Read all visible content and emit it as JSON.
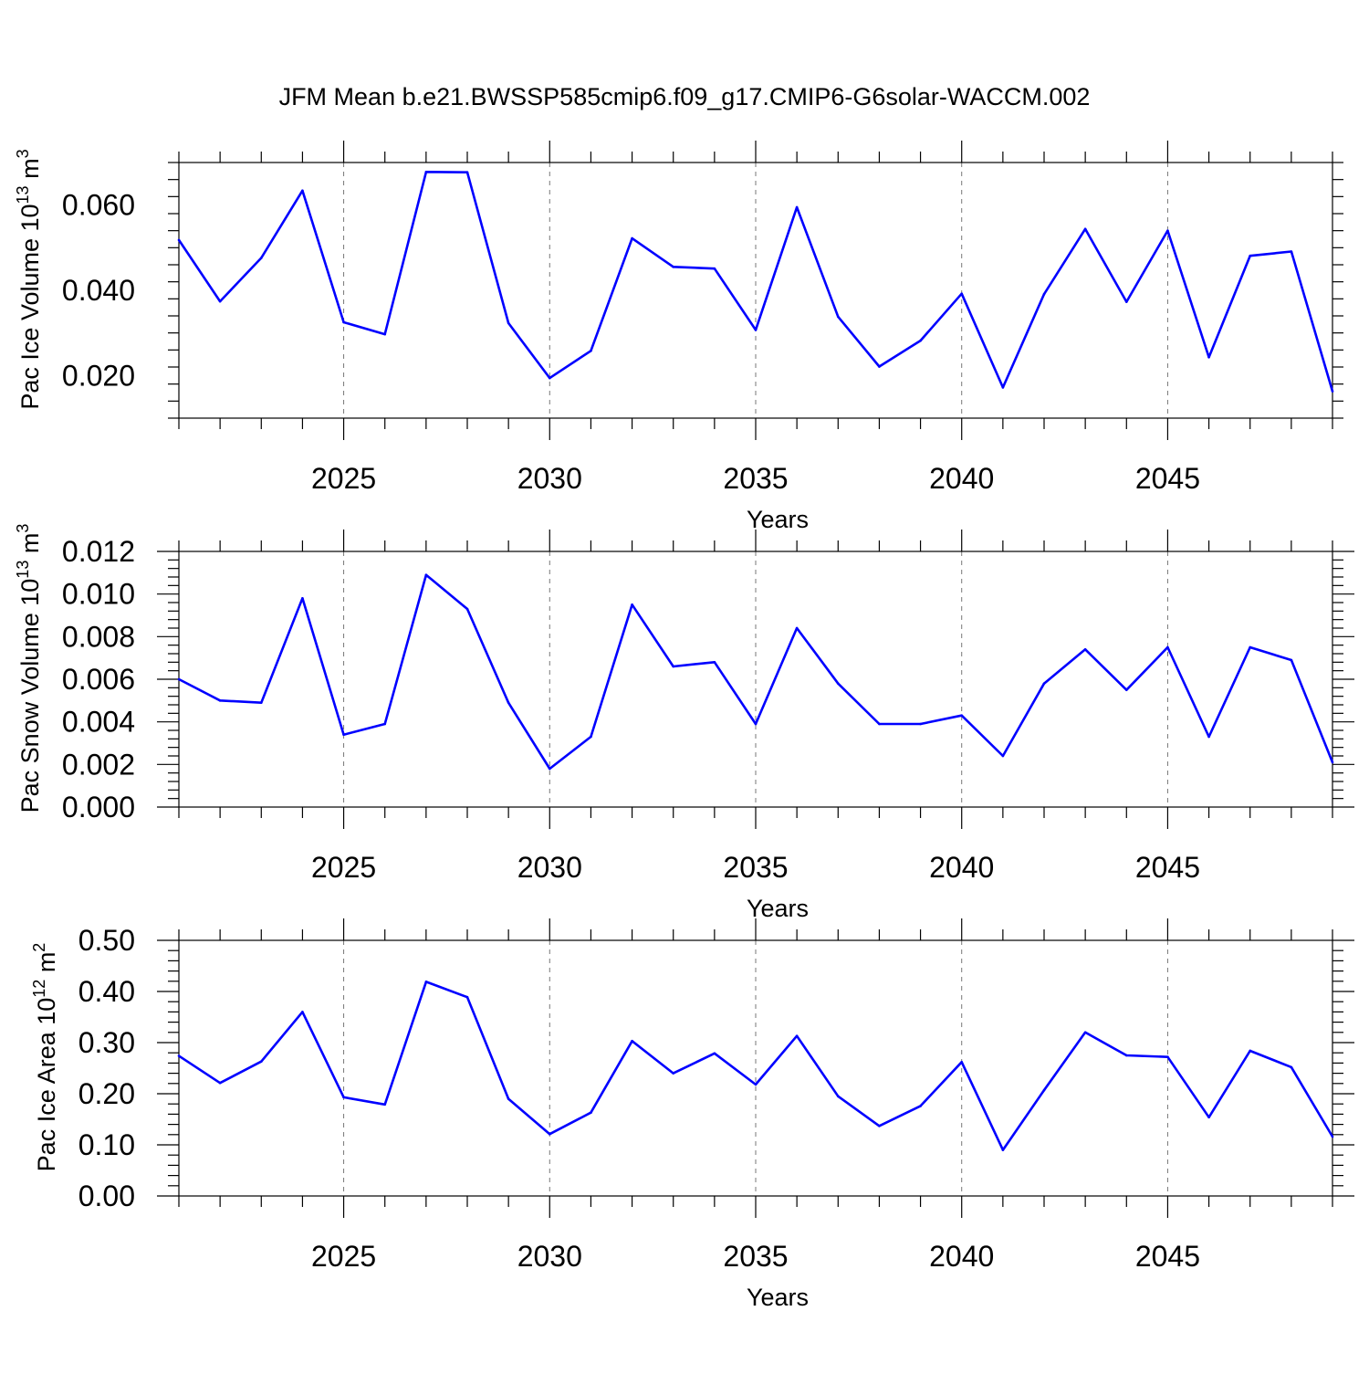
{
  "title": "JFM Mean b.e21.BWSSP585cmip6.f09_g17.CMIP6-G6solar-WACCM.002",
  "line_color": "#0000ff",
  "chart_data": [
    {
      "type": "line",
      "ylabel": "Pac Ice Volume 10",
      "ylabel_exp": "13",
      "ylabel_unit": " m",
      "ylabel_unit_exp": "3",
      "xlabel": "Years",
      "xlim": [
        2021,
        2049
      ],
      "ylim": [
        0.01,
        0.07
      ],
      "yticks": [
        "0.020",
        "0.040",
        "0.060"
      ],
      "ytick_values": [
        0.02,
        0.04,
        0.06
      ],
      "xticks": [
        "2025",
        "2030",
        "2035",
        "2040",
        "2045"
      ],
      "grid": "dashed vertical at major x ticks",
      "x": [
        2021,
        2022,
        2023,
        2024,
        2025,
        2026,
        2027,
        2028,
        2029,
        2030,
        2031,
        2032,
        2033,
        2034,
        2035,
        2036,
        2037,
        2038,
        2039,
        2040,
        2041,
        2042,
        2043,
        2044,
        2045,
        2046,
        2047,
        2048,
        2049
      ],
      "values": [
        0.0518,
        0.0374,
        0.0476,
        0.0634,
        0.0325,
        0.0297,
        0.0678,
        0.0677,
        0.0323,
        0.0194,
        0.0258,
        0.0522,
        0.0455,
        0.0451,
        0.0307,
        0.0595,
        0.0338,
        0.0221,
        0.0282,
        0.0392,
        0.0172,
        0.0391,
        0.0544,
        0.0373,
        0.054,
        0.0243,
        0.0481,
        0.0491,
        0.0163
      ]
    },
    {
      "type": "line",
      "ylabel": "Pac Snow Volume 10",
      "ylabel_exp": "13",
      "ylabel_unit": " m",
      "ylabel_unit_exp": "3",
      "xlabel": "Years",
      "xlim": [
        2021,
        2049
      ],
      "ylim": [
        0.0,
        0.012
      ],
      "yticks": [
        "0.000",
        "0.002",
        "0.004",
        "0.006",
        "0.008",
        "0.010",
        "0.012"
      ],
      "ytick_values": [
        0.0,
        0.002,
        0.004,
        0.006,
        0.008,
        0.01,
        0.012
      ],
      "xticks": [
        "2025",
        "2030",
        "2035",
        "2040",
        "2045"
      ],
      "grid": "dashed vertical at major x ticks",
      "x": [
        2021,
        2022,
        2023,
        2024,
        2025,
        2026,
        2027,
        2028,
        2029,
        2030,
        2031,
        2032,
        2033,
        2034,
        2035,
        2036,
        2037,
        2038,
        2039,
        2040,
        2041,
        2042,
        2043,
        2044,
        2045,
        2046,
        2047,
        2048,
        2049
      ],
      "values": [
        0.006,
        0.005,
        0.0049,
        0.0098,
        0.0034,
        0.0039,
        0.0109,
        0.0093,
        0.0049,
        0.0018,
        0.0033,
        0.0095,
        0.0066,
        0.0068,
        0.0039,
        0.0084,
        0.0058,
        0.0039,
        0.0039,
        0.0043,
        0.0024,
        0.0058,
        0.0074,
        0.0055,
        0.0075,
        0.0033,
        0.0075,
        0.0069,
        0.0021
      ]
    },
    {
      "type": "line",
      "ylabel": "Pac Ice Area 10",
      "ylabel_exp": "12",
      "ylabel_unit": " m",
      "ylabel_unit_exp": "2",
      "xlabel": "Years",
      "xlim": [
        2021,
        2049
      ],
      "ylim": [
        0.0,
        0.5
      ],
      "yticks": [
        "0.00",
        "0.10",
        "0.20",
        "0.30",
        "0.40",
        "0.50"
      ],
      "ytick_values": [
        0.0,
        0.1,
        0.2,
        0.3,
        0.4,
        0.5
      ],
      "xticks": [
        "2025",
        "2030",
        "2035",
        "2040",
        "2045"
      ],
      "grid": "dashed vertical at major x ticks",
      "x": [
        2021,
        2022,
        2023,
        2024,
        2025,
        2026,
        2027,
        2028,
        2029,
        2030,
        2031,
        2032,
        2033,
        2034,
        2035,
        2036,
        2037,
        2038,
        2039,
        2040,
        2041,
        2042,
        2043,
        2044,
        2045,
        2046,
        2047,
        2048,
        2049
      ],
      "values": [
        0.274,
        0.221,
        0.263,
        0.36,
        0.193,
        0.179,
        0.419,
        0.389,
        0.19,
        0.121,
        0.163,
        0.303,
        0.24,
        0.279,
        0.218,
        0.313,
        0.195,
        0.137,
        0.176,
        0.262,
        0.09,
        0.207,
        0.32,
        0.275,
        0.272,
        0.154,
        0.284,
        0.252,
        0.116
      ]
    }
  ]
}
